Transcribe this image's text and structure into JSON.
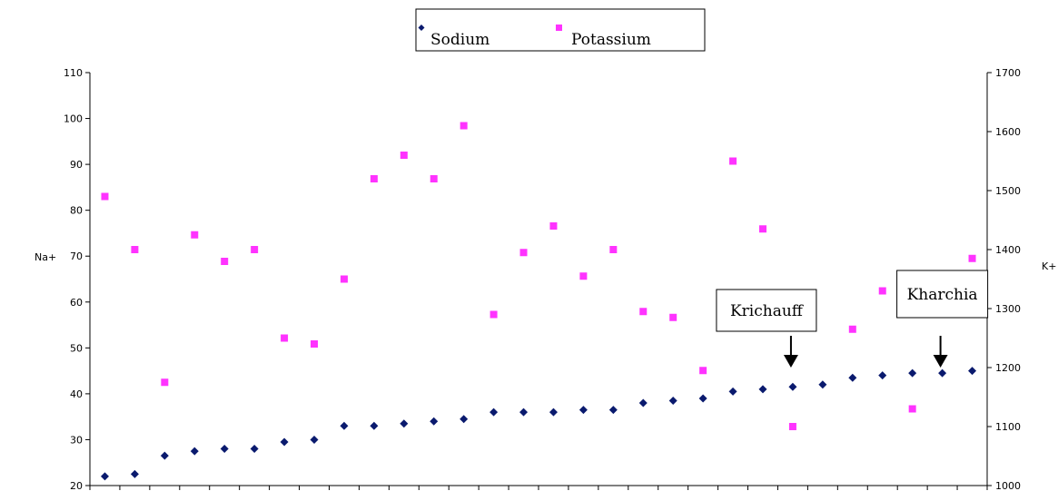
{
  "chart_data": {
    "type": "scatter",
    "left_axis": {
      "label": "Na+",
      "min": 20,
      "max": 110,
      "ticks": [
        "20",
        "30",
        "40",
        "50",
        "60",
        "70",
        "80",
        "90",
        "100",
        "110"
      ]
    },
    "right_axis": {
      "label": "K+",
      "min": 1000,
      "max": 1700,
      "ticks": [
        "1000",
        "1100",
        "1200",
        "1300",
        "1400",
        "1500",
        "1600",
        "1700"
      ]
    },
    "categories_count": 30,
    "legend": {
      "position": "top-center",
      "entries": [
        "Sodium",
        "Potassium"
      ]
    },
    "series": [
      {
        "name": "Sodium",
        "axis": "left",
        "color": "#0a1a6e",
        "marker": "diamond",
        "values": [
          22,
          22.5,
          26.5,
          27.5,
          28,
          28,
          29.5,
          30,
          33,
          33,
          33.5,
          34,
          34.5,
          36,
          36,
          36,
          36.5,
          36.5,
          38,
          38.5,
          39,
          40.5,
          41,
          41.5,
          42,
          43.5,
          44,
          44.5,
          44.5,
          45
        ]
      },
      {
        "name": "Potassium",
        "axis": "right",
        "color": "#ff33ff",
        "marker": "square",
        "values": [
          1490,
          1400,
          1175,
          1425,
          1380,
          1400,
          1250,
          1240,
          1350,
          1520,
          1560,
          1520,
          1610,
          1290,
          1395,
          1440,
          1355,
          1400,
          1295,
          1285,
          1195,
          1550,
          1435,
          1100,
          null,
          1265,
          1330,
          1130,
          null,
          1385
        ]
      }
    ],
    "annotations": [
      {
        "text": "Krichauff",
        "category_index": 23
      },
      {
        "text": "Kharchia",
        "category_index": 28
      }
    ]
  }
}
